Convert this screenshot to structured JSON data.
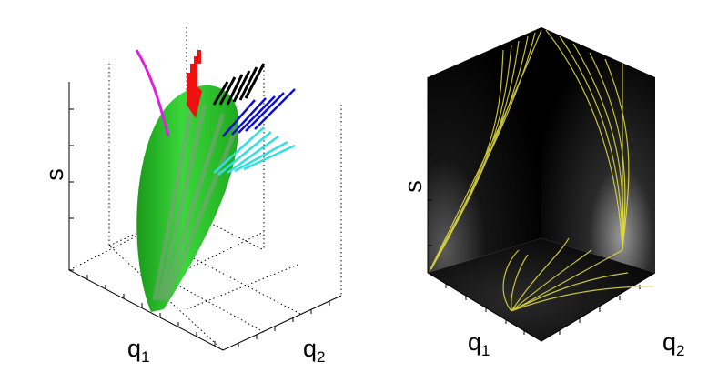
{
  "panels": [
    {
      "axis_labels": {
        "s": "s",
        "q1": {
          "base": "q",
          "sub": "1"
        },
        "q2": {
          "base": "q",
          "sub": "2"
        }
      }
    },
    {
      "axis_labels": {
        "s": "s",
        "q1": {
          "base": "q",
          "sub": "1"
        },
        "q2": {
          "base": "q",
          "sub": "2"
        }
      }
    }
  ]
}
